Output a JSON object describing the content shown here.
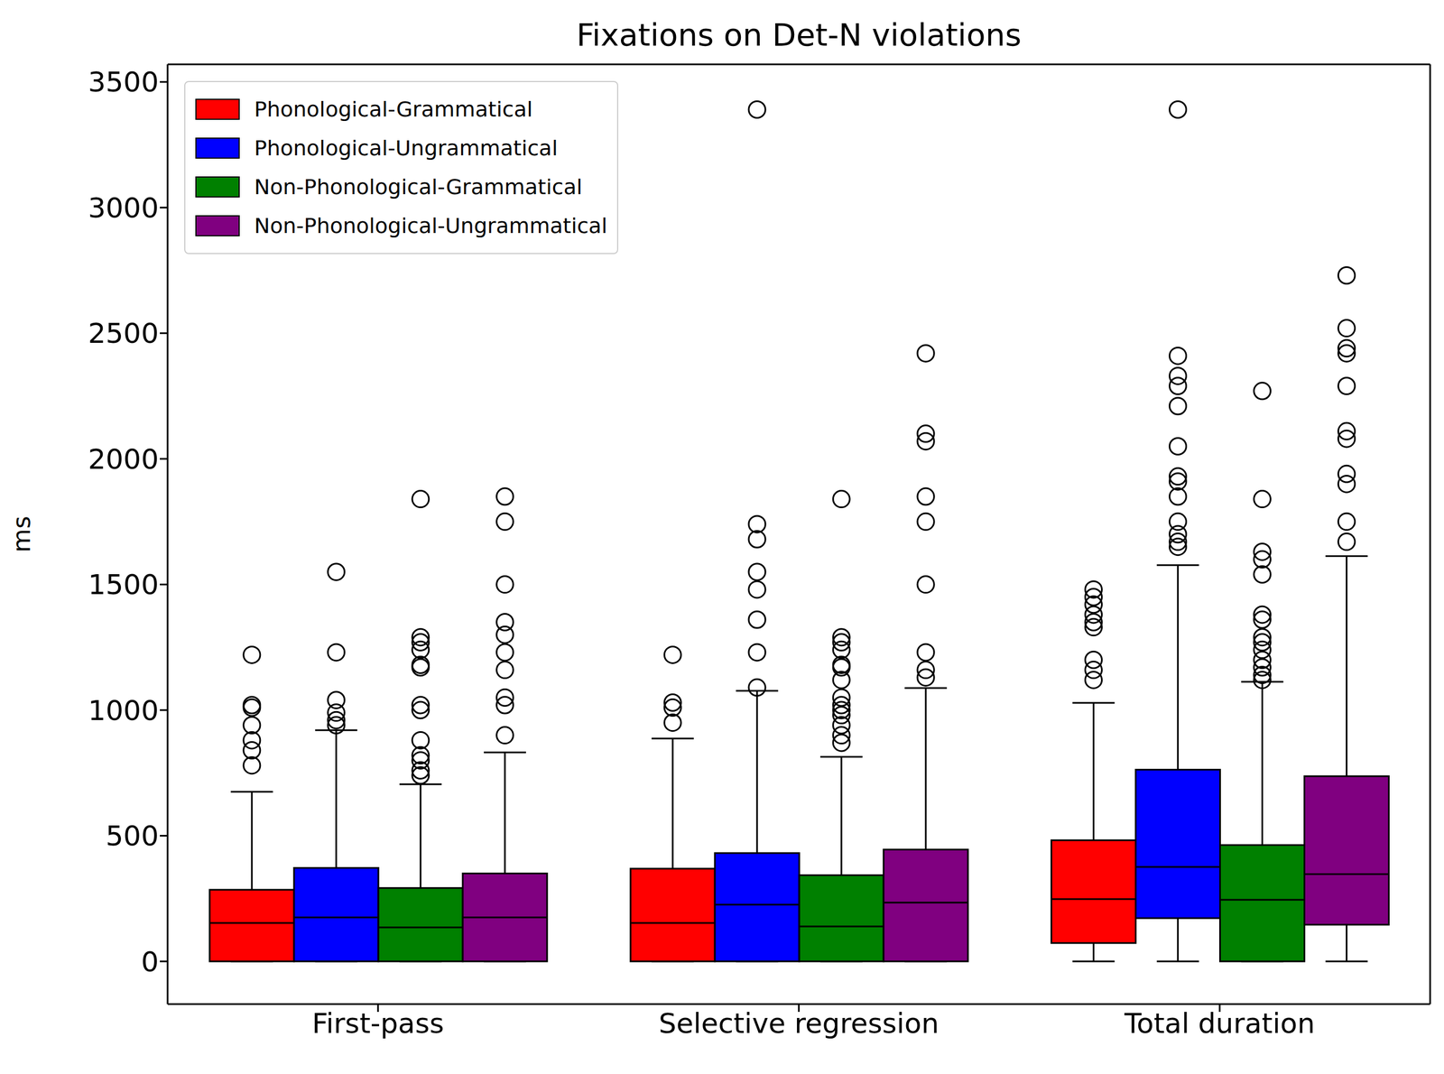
{
  "chart_data": {
    "type": "boxplot",
    "title": "Fixations on Det-N violations",
    "y_label": "ms",
    "categories": [
      "First-pass",
      "Selective regression",
      "Total duration"
    ],
    "series": [
      {
        "name": "Phonological-Grammatical",
        "color": "#ff0000",
        "whisker_low": [
          0,
          0,
          0
        ],
        "q1": [
          0,
          0,
          73
        ],
        "median": [
          153,
          153,
          248
        ],
        "q3": [
          285,
          369,
          482
        ],
        "whisker_high": [
          675,
          887,
          1029
        ],
        "outliers": [
          [
            1220,
            1020,
            1010,
            940,
            880,
            840,
            780
          ],
          [
            1220,
            1030,
            1010,
            950
          ],
          [
            1480,
            1450,
            1420,
            1380,
            1350,
            1330,
            1200,
            1160,
            1120
          ]
        ]
      },
      {
        "name": "Phonological-Ungrammatical",
        "color": "#0000ff",
        "whisker_low": [
          0,
          0,
          0
        ],
        "q1": [
          0,
          0,
          172
        ],
        "median": [
          175,
          226,
          376
        ],
        "q3": [
          372,
          431,
          763
        ],
        "whisker_high": [
          920,
          1077,
          1577
        ],
        "outliers": [
          [
            1550,
            1230,
            1040,
            990,
            960,
            940
          ],
          [
            3390,
            1740,
            1680,
            1550,
            1480,
            1360,
            1230,
            1090
          ],
          [
            3390,
            2410,
            2330,
            2290,
            2210,
            2050,
            1930,
            1910,
            1850,
            1750,
            1700,
            1670,
            1650
          ]
        ]
      },
      {
        "name": "Non-Phonological-Grammatical",
        "color": "#008000",
        "whisker_low": [
          0,
          0,
          0
        ],
        "q1": [
          0,
          0,
          0
        ],
        "median": [
          135,
          139,
          245
        ],
        "q3": [
          292,
          343,
          463
        ],
        "whisker_high": [
          705,
          814,
          1113
        ],
        "outliers": [
          [
            1840,
            1290,
            1270,
            1240,
            1180,
            1170,
            1020,
            1000,
            880,
            820,
            800,
            760,
            740
          ],
          [
            1840,
            1290,
            1270,
            1240,
            1180,
            1170,
            1120,
            1050,
            1020,
            1000,
            980,
            940,
            900,
            870
          ],
          [
            2270,
            1840,
            1630,
            1600,
            1540,
            1380,
            1360,
            1290,
            1270,
            1240,
            1200,
            1170,
            1140,
            1120
          ]
        ]
      },
      {
        "name": "Non-Phonological-Ungrammatical",
        "color": "#800080",
        "whisker_low": [
          0,
          0,
          0
        ],
        "q1": [
          0,
          0,
          146
        ],
        "median": [
          175,
          234,
          347
        ],
        "q3": [
          350,
          445,
          737
        ],
        "whisker_high": [
          832,
          1088,
          1613
        ],
        "outliers": [
          [
            1850,
            1750,
            1500,
            1350,
            1300,
            1230,
            1160,
            1050,
            1020,
            900
          ],
          [
            2420,
            2100,
            2070,
            1850,
            1750,
            1500,
            1230,
            1160,
            1130
          ],
          [
            2730,
            2520,
            2440,
            2420,
            2290,
            2110,
            2080,
            1940,
            1900,
            1750,
            1670
          ]
        ]
      }
    ],
    "ylim": [
      -170,
      3570
    ],
    "yticks": [
      0,
      500,
      1000,
      1500,
      2000,
      2500,
      3000,
      3500
    ],
    "grid": false,
    "legend": "top-left"
  }
}
